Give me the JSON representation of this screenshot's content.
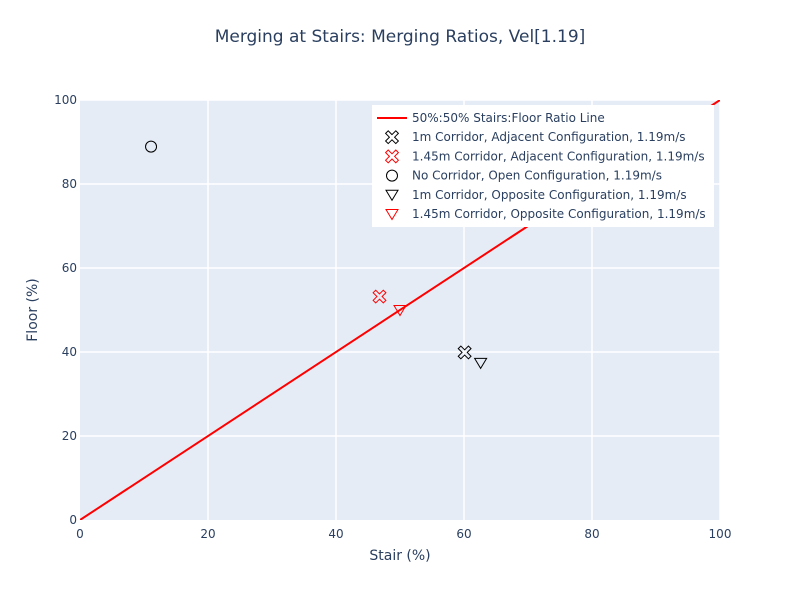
{
  "chart_data": {
    "type": "scatter",
    "title": "Merging at Stairs: Merging Ratios, Vel[1.19]",
    "xlabel": "Stair (%)",
    "ylabel": "Floor (%)",
    "xlim": [
      0,
      100
    ],
    "ylim": [
      0,
      100
    ],
    "x_ticks": [
      "0",
      "20",
      "40",
      "60",
      "80",
      "100"
    ],
    "y_ticks": [
      "0",
      "20",
      "40",
      "60",
      "80",
      "100"
    ],
    "grid": true,
    "legend_position": "top-right",
    "colors": {
      "plot_bg": "#e5ecf6",
      "line": "#ff0000",
      "black": "#000000",
      "red": "#ff0000",
      "text": "#2a3f5f"
    },
    "series": [
      {
        "name": "50%:50% Stairs:Floor Ratio Line",
        "kind": "line",
        "color": "#ff0000",
        "x": [
          0,
          100
        ],
        "y": [
          0,
          100
        ]
      },
      {
        "name": "1m Corridor, Adjacent Configuration, 1.19m/s",
        "kind": "marker",
        "symbol": "x-open",
        "color": "#000000",
        "x": [
          60.1
        ],
        "y": [
          39.9
        ]
      },
      {
        "name": "1.45m Corridor, Adjacent Configuration, 1.19m/s",
        "kind": "marker",
        "symbol": "x-open",
        "color": "#ff0000",
        "x": [
          46.8
        ],
        "y": [
          53.2
        ]
      },
      {
        "name": "No Corridor, Open Configuration, 1.19m/s",
        "kind": "marker",
        "symbol": "circle-open",
        "color": "#000000",
        "x": [
          11.1
        ],
        "y": [
          88.9
        ]
      },
      {
        "name": "1m Corridor, Opposite Configuration, 1.19m/s",
        "kind": "marker",
        "symbol": "triangle-down-open",
        "color": "#000000",
        "x": [
          62.6
        ],
        "y": [
          37.4
        ]
      },
      {
        "name": "1.45m Corridor, Opposite Configuration, 1.19m/s",
        "kind": "marker",
        "symbol": "triangle-down-open",
        "color": "#ff0000",
        "x": [
          50.0
        ],
        "y": [
          50.0
        ]
      }
    ]
  }
}
